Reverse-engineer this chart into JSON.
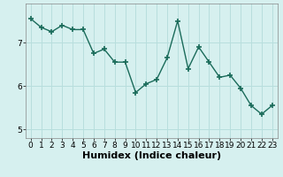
{
  "x": [
    0,
    1,
    2,
    3,
    4,
    5,
    6,
    7,
    8,
    9,
    10,
    11,
    12,
    13,
    14,
    15,
    16,
    17,
    18,
    19,
    20,
    21,
    22,
    23
  ],
  "y": [
    7.55,
    7.35,
    7.25,
    7.4,
    7.3,
    7.3,
    6.75,
    6.85,
    6.55,
    6.55,
    5.85,
    6.05,
    6.15,
    6.65,
    7.5,
    6.4,
    6.9,
    6.55,
    6.2,
    6.25,
    5.95,
    5.55,
    5.35,
    5.55
  ],
  "line_color": "#1a6b5a",
  "marker": "+",
  "bg_color": "#d6f0ef",
  "grid_color": "#b8dedd",
  "xlabel": "Humidex (Indice chaleur)",
  "xlabel_fontsize": 8,
  "ylim": [
    4.8,
    7.9
  ],
  "xlim": [
    -0.5,
    23.5
  ],
  "yticks": [
    5,
    6,
    7
  ],
  "xticks": [
    0,
    1,
    2,
    3,
    4,
    5,
    6,
    7,
    8,
    9,
    10,
    11,
    12,
    13,
    14,
    15,
    16,
    17,
    18,
    19,
    20,
    21,
    22,
    23
  ],
  "tick_fontsize": 6.5,
  "line_width": 1.0,
  "marker_size": 4
}
